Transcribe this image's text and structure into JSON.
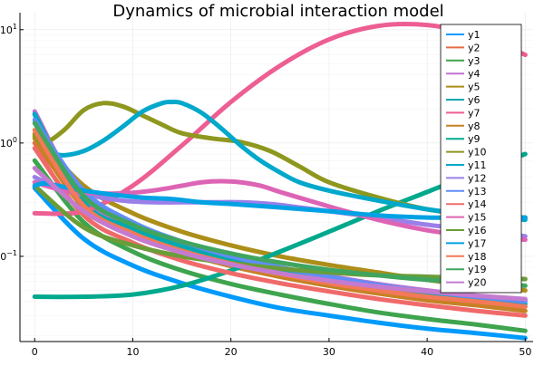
{
  "chart_data": {
    "type": "line",
    "title": "Dynamics of microbial interaction model",
    "xlabel": "",
    "ylabel": "",
    "y_scale": "log10",
    "xlim": [
      -1.5,
      50.8
    ],
    "ylim": [
      0.0177,
      14.13
    ],
    "x_ticks": [
      0,
      10,
      20,
      30,
      40,
      50
    ],
    "x_tick_labels": [
      "0",
      "10",
      "20",
      "30",
      "40",
      "50"
    ],
    "y_ticks": [
      0.1,
      1,
      10
    ],
    "y_tick_labels": [
      "10^-1",
      "10^0",
      "10^1"
    ],
    "grid": true,
    "legend_position": "top-right",
    "series": [
      {
        "name": "y1",
        "color": "#009AFA",
        "x": [
          0,
          5,
          10,
          15,
          20,
          25,
          30,
          35,
          40,
          45,
          50
        ],
        "y": [
          0.4,
          0.143,
          0.083,
          0.058,
          0.044,
          0.035,
          0.03,
          0.026,
          0.023,
          0.021,
          0.019
        ]
      },
      {
        "name": "y2",
        "color": "#E36F47",
        "x": [
          0,
          5,
          10,
          15,
          20,
          25,
          30,
          35,
          40,
          45,
          50
        ],
        "y": [
          1.0,
          0.3,
          0.17,
          0.118,
          0.09,
          0.073,
          0.06,
          0.052,
          0.045,
          0.04,
          0.036
        ]
      },
      {
        "name": "y3",
        "color": "#3EA44E",
        "x": [
          0,
          5,
          10,
          15,
          20,
          25,
          30,
          35,
          40,
          45,
          50
        ],
        "y": [
          0.7,
          0.2,
          0.11,
          0.075,
          0.057,
          0.046,
          0.038,
          0.032,
          0.028,
          0.025,
          0.022
        ]
      },
      {
        "name": "y4",
        "color": "#C271D2",
        "x": [
          0,
          5,
          10,
          15,
          20,
          25,
          30,
          35,
          40,
          45,
          50
        ],
        "y": [
          1.9,
          0.32,
          0.185,
          0.13,
          0.1,
          0.08,
          0.067,
          0.057,
          0.05,
          0.045,
          0.041
        ]
      },
      {
        "name": "y5",
        "color": "#AC8E18",
        "x": [
          0,
          5,
          10,
          15,
          20,
          25,
          30,
          35,
          40,
          45,
          50
        ],
        "y": [
          1.2,
          0.42,
          0.24,
          0.165,
          0.125,
          0.1,
          0.084,
          0.072,
          0.062,
          0.055,
          0.05
        ]
      },
      {
        "name": "y6",
        "color": "#00A9AD",
        "x": [
          0,
          5,
          10,
          15,
          20,
          25,
          30,
          35,
          40,
          45,
          50
        ],
        "y": [
          1.8,
          0.3,
          0.175,
          0.122,
          0.095,
          0.077,
          0.064,
          0.055,
          0.048,
          0.043,
          0.038
        ]
      },
      {
        "name": "y7",
        "color": "#ED5E93",
        "x": [
          0,
          5,
          10,
          15,
          20,
          25,
          30,
          35,
          40,
          45,
          50
        ],
        "y": [
          0.24,
          0.25,
          0.42,
          0.95,
          2.3,
          4.8,
          8.2,
          10.8,
          11.0,
          9.0,
          6.0
        ]
      },
      {
        "name": "y8",
        "color": "#C68125",
        "x": [
          0,
          5,
          10,
          15,
          20,
          25,
          30,
          35,
          40,
          45,
          50
        ],
        "y": [
          1.1,
          0.27,
          0.155,
          0.108,
          0.082,
          0.066,
          0.055,
          0.047,
          0.041,
          0.037,
          0.033
        ]
      },
      {
        "name": "y9",
        "color": "#00A98D",
        "x": [
          0,
          5,
          10,
          15,
          20,
          25,
          30,
          35,
          40,
          45,
          50
        ],
        "y": [
          0.044,
          0.044,
          0.046,
          0.055,
          0.075,
          0.11,
          0.165,
          0.25,
          0.37,
          0.55,
          0.8
        ]
      },
      {
        "name": "y10",
        "color": "#8E971E",
        "x": [
          0,
          1,
          3,
          5,
          7,
          9,
          11,
          13,
          15,
          18,
          21,
          24,
          27,
          30,
          35,
          40,
          45,
          50
        ],
        "y": [
          1.15,
          1.0,
          1.3,
          1.95,
          2.25,
          2.1,
          1.75,
          1.45,
          1.22,
          1.1,
          1.02,
          0.85,
          0.62,
          0.45,
          0.33,
          0.26,
          0.23,
          0.22
        ]
      },
      {
        "name": "y11",
        "color": "#00A8CB",
        "x": [
          0,
          1,
          2,
          3,
          5,
          7,
          9,
          11,
          13,
          14,
          15,
          17,
          19,
          21,
          23,
          25,
          27,
          30,
          35,
          40,
          45,
          50
        ],
        "y": [
          1.8,
          1.0,
          0.82,
          0.78,
          0.85,
          1.05,
          1.4,
          1.9,
          2.25,
          2.3,
          2.25,
          1.85,
          1.35,
          0.95,
          0.7,
          0.55,
          0.45,
          0.38,
          0.31,
          0.26,
          0.23,
          0.21
        ]
      },
      {
        "name": "y12",
        "color": "#9B7FE9",
        "x": [
          0,
          3,
          6,
          9,
          12,
          15,
          18,
          21,
          24,
          27,
          30,
          35,
          40,
          45,
          50
        ],
        "y": [
          0.5,
          0.38,
          0.34,
          0.31,
          0.3,
          0.3,
          0.3,
          0.3,
          0.29,
          0.27,
          0.25,
          0.22,
          0.19,
          0.17,
          0.15
        ]
      },
      {
        "name": "y13",
        "color": "#618DF6",
        "x": [
          0,
          5,
          10,
          15,
          20,
          25,
          30,
          35,
          40,
          45,
          50
        ],
        "y": [
          1.6,
          0.38,
          0.2,
          0.135,
          0.1,
          0.08,
          0.066,
          0.056,
          0.049,
          0.044,
          0.04
        ]
      },
      {
        "name": "y14",
        "color": "#F06A6A",
        "x": [
          0,
          5,
          10,
          15,
          20,
          25,
          30,
          35,
          40,
          45,
          50
        ],
        "y": [
          0.9,
          0.23,
          0.132,
          0.092,
          0.071,
          0.058,
          0.049,
          0.042,
          0.037,
          0.033,
          0.03
        ]
      },
      {
        "name": "y15",
        "color": "#DD64B5",
        "x": [
          0,
          3,
          6,
          9,
          12,
          15,
          17,
          19,
          21,
          23,
          25,
          28,
          31,
          35,
          40,
          45,
          50
        ],
        "y": [
          0.45,
          0.38,
          0.36,
          0.36,
          0.38,
          0.42,
          0.45,
          0.46,
          0.45,
          0.42,
          0.37,
          0.31,
          0.26,
          0.21,
          0.17,
          0.15,
          0.14
        ]
      },
      {
        "name": "y16",
        "color": "#6A9D37",
        "x": [
          0,
          5,
          10,
          15,
          20,
          25,
          30,
          35,
          40,
          45,
          50
        ],
        "y": [
          0.42,
          0.18,
          0.125,
          0.1,
          0.087,
          0.078,
          0.072,
          0.068,
          0.066,
          0.064,
          0.063
        ]
      },
      {
        "name": "y17",
        "color": "#00A2E4",
        "x": [
          0,
          1,
          3,
          5,
          8,
          11,
          14,
          17,
          20,
          25,
          30,
          35,
          40,
          45,
          50
        ],
        "y": [
          0.42,
          0.44,
          0.41,
          0.38,
          0.35,
          0.33,
          0.32,
          0.3,
          0.29,
          0.27,
          0.25,
          0.23,
          0.22,
          0.22,
          0.22
        ]
      },
      {
        "name": "y18",
        "color": "#F37958",
        "x": [
          0,
          5,
          10,
          15,
          20,
          25,
          30,
          35,
          40,
          45,
          50
        ],
        "y": [
          1.3,
          0.28,
          0.16,
          0.112,
          0.086,
          0.07,
          0.058,
          0.05,
          0.044,
          0.04,
          0.036
        ]
      },
      {
        "name": "y19",
        "color": "#40A55F",
        "x": [
          0,
          5,
          10,
          15,
          20,
          25,
          30,
          35,
          40,
          45,
          50
        ],
        "y": [
          1.5,
          0.34,
          0.19,
          0.135,
          0.106,
          0.088,
          0.076,
          0.068,
          0.062,
          0.058,
          0.055
        ]
      },
      {
        "name": "y20",
        "color": "#C47BCF",
        "x": [
          0,
          5,
          10,
          15,
          20,
          25,
          30,
          35,
          40,
          45,
          50
        ],
        "y": [
          0.6,
          0.25,
          0.15,
          0.108,
          0.085,
          0.071,
          0.061,
          0.054,
          0.049,
          0.045,
          0.042
        ]
      }
    ]
  }
}
